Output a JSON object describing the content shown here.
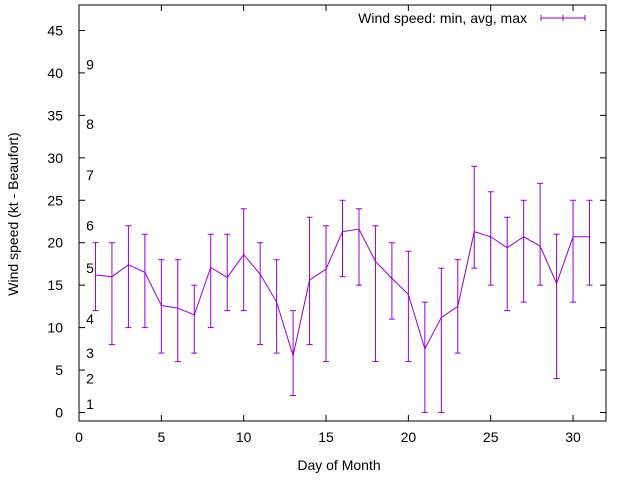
{
  "chart_data": {
    "type": "line",
    "xlabel": "Day of Month",
    "ylabel": "Wind speed (kt - Beaufort)",
    "xlim": [
      0,
      32
    ],
    "ylim": [
      -1,
      48
    ],
    "x_ticks": [
      "0",
      "5",
      "10",
      "15",
      "20",
      "25",
      "30"
    ],
    "y_ticks": [
      "0",
      "5",
      "10",
      "15",
      "20",
      "25",
      "30",
      "35",
      "40",
      "45"
    ],
    "grid": false,
    "legend_position": "top-right",
    "beaufort_labels": [
      {
        "label": "1",
        "y": 1
      },
      {
        "label": "2",
        "y": 4
      },
      {
        "label": "3",
        "y": 7
      },
      {
        "label": "4",
        "y": 11
      },
      {
        "label": "5",
        "y": 17
      },
      {
        "label": "6",
        "y": 22
      },
      {
        "label": "7",
        "y": 28
      },
      {
        "label": "8",
        "y": 34
      },
      {
        "label": "9",
        "y": 41
      }
    ],
    "series": [
      {
        "name": "Wind speed: min, avg, max",
        "color": "#9400d3",
        "x": [
          1,
          2,
          3,
          4,
          5,
          6,
          7,
          8,
          9,
          10,
          11,
          12,
          13,
          14,
          15,
          16,
          17,
          18,
          19,
          20,
          21,
          22,
          23,
          24,
          25,
          26,
          27,
          28,
          29,
          30,
          31
        ],
        "avg": [
          16.2,
          16.0,
          17.4,
          16.5,
          12.6,
          12.3,
          11.5,
          17.1,
          15.9,
          18.6,
          16.3,
          13.0,
          6.7,
          15.6,
          16.9,
          21.3,
          21.6,
          17.8,
          15.8,
          13.9,
          7.5,
          11.2,
          12.5,
          21.3,
          20.7,
          19.4,
          20.7,
          19.6,
          15.2,
          20.7,
          20.7
        ],
        "min": [
          12,
          8,
          10,
          10,
          7,
          6,
          7,
          10,
          12,
          12,
          8,
          7,
          2,
          8,
          6,
          16,
          15,
          6,
          11,
          6,
          0,
          0,
          7,
          17,
          15,
          12,
          13,
          15,
          4,
          13,
          15
        ],
        "max": [
          20,
          20,
          22,
          21,
          18,
          18,
          15,
          21,
          21,
          24,
          20,
          18,
          12,
          23,
          22,
          25,
          24,
          22,
          20,
          19,
          13,
          17,
          18,
          29,
          26,
          23,
          25,
          27,
          21,
          25,
          25
        ]
      }
    ]
  }
}
